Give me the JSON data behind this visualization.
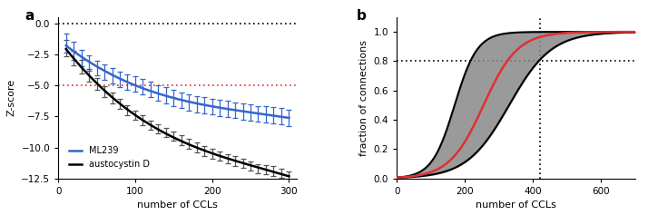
{
  "panel_a": {
    "black_x": [
      10,
      20,
      30,
      40,
      50,
      60,
      70,
      80,
      90,
      100,
      110,
      120,
      130,
      140,
      150,
      160,
      170,
      180,
      190,
      200,
      210,
      220,
      230,
      240,
      250,
      260,
      270,
      280,
      290,
      300
    ],
    "black_y": [
      -2.0,
      -2.8,
      -3.5,
      -4.2,
      -4.9,
      -5.5,
      -6.0,
      -6.5,
      -7.0,
      -7.4,
      -7.8,
      -8.2,
      -8.5,
      -8.8,
      -9.1,
      -9.4,
      -9.7,
      -10.0,
      -10.3,
      -10.5,
      -10.7,
      -10.9,
      -11.1,
      -11.3,
      -11.5,
      -11.7,
      -11.8,
      -11.9,
      -12.1,
      -12.3
    ],
    "black_yerr": [
      0.65,
      0.6,
      0.55,
      0.5,
      0.48,
      0.45,
      0.43,
      0.42,
      0.42,
      0.4,
      0.4,
      0.38,
      0.38,
      0.38,
      0.38,
      0.38,
      0.38,
      0.38,
      0.38,
      0.38,
      0.38,
      0.38,
      0.38,
      0.38,
      0.38,
      0.38,
      0.38,
      0.38,
      0.38,
      0.38
    ],
    "blue_x": [
      10,
      20,
      30,
      40,
      50,
      60,
      70,
      80,
      90,
      100,
      110,
      120,
      130,
      140,
      150,
      160,
      170,
      180,
      190,
      200,
      210,
      220,
      230,
      240,
      250,
      260,
      270,
      280,
      290,
      300
    ],
    "blue_y": [
      -1.6,
      -2.2,
      -2.8,
      -3.2,
      -3.6,
      -3.9,
      -4.2,
      -4.5,
      -4.7,
      -4.9,
      -5.1,
      -5.35,
      -5.6,
      -5.8,
      -6.0,
      -6.2,
      -6.35,
      -6.5,
      -6.6,
      -6.7,
      -6.8,
      -6.9,
      -7.0,
      -7.1,
      -7.2,
      -7.3,
      -7.35,
      -7.4,
      -7.5,
      -7.6
    ],
    "blue_yerr": [
      0.75,
      0.72,
      0.68,
      0.65,
      0.62,
      0.62,
      0.62,
      0.62,
      0.62,
      0.62,
      0.62,
      0.62,
      0.62,
      0.65,
      0.65,
      0.65,
      0.65,
      0.65,
      0.65,
      0.65,
      0.65,
      0.65,
      0.65,
      0.65,
      0.65,
      0.65,
      0.65,
      0.65,
      0.65,
      0.65
    ],
    "xlim": [
      0,
      310
    ],
    "ylim": [
      -12.5,
      0.5
    ],
    "xticks": [
      0,
      100,
      200,
      300
    ],
    "yticks": [
      0.0,
      -2.5,
      -5.0,
      -7.5,
      -10.0,
      -12.5
    ],
    "xlabel": "number of CCLs",
    "ylabel": "Z-score",
    "hline_black_y": 0.0,
    "hline_red_y": -5.0,
    "black_line_color": "#000000",
    "blue_line_color": "#3366cc",
    "red_dashed_color": "#e03030",
    "black_err_color": "#555555"
  },
  "panel_b": {
    "xlim": [
      0,
      700
    ],
    "ylim": [
      0.0,
      1.1
    ],
    "xticks": [
      0,
      200,
      400,
      600
    ],
    "yticks": [
      0.0,
      0.2,
      0.4,
      0.6,
      0.8,
      1.0
    ],
    "xlabel": "number of CCLs",
    "ylabel": "fraction of connections",
    "vline_x": 420,
    "hline_y": 0.8,
    "red_line_color": "#e03030",
    "gray_fill_color": "#888888",
    "boundary_color": "#000000"
  }
}
